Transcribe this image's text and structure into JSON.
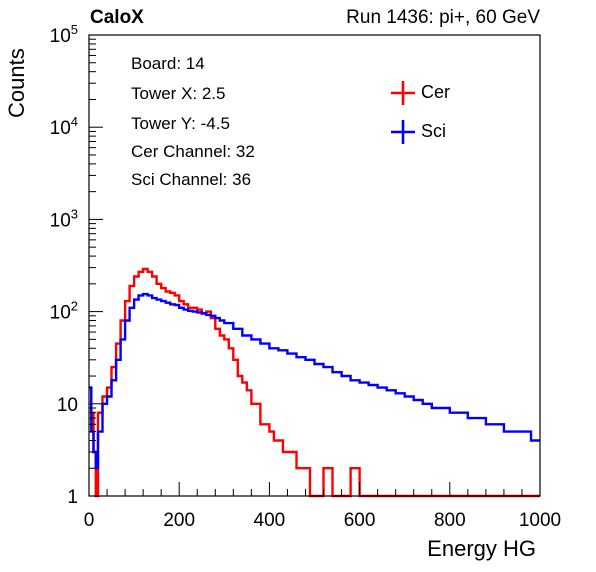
{
  "header": {
    "brand": "CaloX",
    "run": "Run 1436: pi+, 60 GeV"
  },
  "info_box": [
    "Board: 14",
    "Tower X: 2.5",
    "Tower Y: -4.5",
    "Cer Channel: 32",
    "Sci Channel: 36"
  ],
  "colors": {
    "cer": "#ff0000",
    "sci": "#0000ff",
    "axis": "#000000"
  },
  "chart_data": {
    "type": "line",
    "title": "",
    "xlabel": "Energy HG",
    "ylabel": "Counts",
    "xlim": [
      0,
      1000
    ],
    "ylim": [
      1,
      100000
    ],
    "y_scale": "log",
    "grid": false,
    "legend": "top-right",
    "x_ticks": [
      "0",
      "200",
      "400",
      "600",
      "800",
      "1000"
    ],
    "y_ticks": [
      {
        "base": "1",
        "exp": ""
      },
      {
        "base": "10",
        "exp": ""
      },
      {
        "base": "10",
        "exp": "2"
      },
      {
        "base": "10",
        "exp": "3"
      },
      {
        "base": "10",
        "exp": "4"
      },
      {
        "base": "10",
        "exp": "5"
      }
    ],
    "series": [
      {
        "name": "Cer",
        "x": [
          0,
          5,
          10,
          15,
          20,
          30,
          40,
          50,
          60,
          70,
          80,
          90,
          100,
          110,
          120,
          130,
          140,
          150,
          160,
          170,
          180,
          190,
          200,
          210,
          220,
          230,
          240,
          250,
          260,
          270,
          280,
          290,
          300,
          310,
          320,
          330,
          340,
          350,
          360,
          370,
          380,
          390,
          400,
          410,
          420,
          430,
          440,
          450,
          460,
          470,
          480,
          490,
          500,
          520,
          540,
          560,
          580,
          600,
          620,
          640,
          660,
          680,
          700,
          720,
          740,
          760,
          780,
          800,
          850,
          900,
          950,
          1000
        ],
        "y": [
          15,
          8,
          3,
          1,
          8,
          12,
          15,
          25,
          45,
          80,
          130,
          190,
          240,
          270,
          290,
          270,
          240,
          200,
          180,
          165,
          160,
          150,
          130,
          120,
          110,
          110,
          105,
          95,
          100,
          85,
          65,
          55,
          50,
          40,
          30,
          20,
          17,
          14,
          10,
          10,
          6,
          6,
          5,
          4,
          4,
          3,
          3,
          3,
          2,
          2,
          2,
          1,
          1,
          2,
          1,
          1,
          2,
          1,
          1,
          1,
          1,
          1,
          1,
          1,
          1,
          1,
          1,
          1,
          1,
          1,
          1,
          1
        ]
      },
      {
        "name": "Sci",
        "x": [
          0,
          5,
          10,
          15,
          20,
          30,
          40,
          50,
          60,
          70,
          80,
          90,
          100,
          110,
          120,
          130,
          140,
          150,
          160,
          170,
          180,
          190,
          200,
          210,
          220,
          230,
          240,
          250,
          260,
          270,
          280,
          290,
          300,
          320,
          340,
          360,
          380,
          400,
          420,
          440,
          460,
          480,
          500,
          520,
          540,
          560,
          580,
          600,
          620,
          640,
          660,
          680,
          700,
          720,
          740,
          760,
          780,
          800,
          820,
          840,
          860,
          880,
          900,
          920,
          940,
          960,
          980,
          1000
        ],
        "y": [
          15,
          5,
          3,
          2,
          5,
          10,
          12,
          18,
          30,
          50,
          80,
          110,
          135,
          150,
          155,
          150,
          140,
          135,
          130,
          125,
          120,
          118,
          110,
          105,
          102,
          100,
          98,
          96,
          92,
          90,
          85,
          80,
          75,
          65,
          55,
          50,
          45,
          40,
          38,
          35,
          32,
          30,
          27,
          25,
          22,
          20,
          18,
          17,
          16,
          15,
          14,
          13,
          12,
          11,
          10,
          9,
          9,
          8,
          8,
          7,
          7,
          6,
          6,
          5,
          5,
          5,
          4,
          4
        ]
      }
    ]
  }
}
